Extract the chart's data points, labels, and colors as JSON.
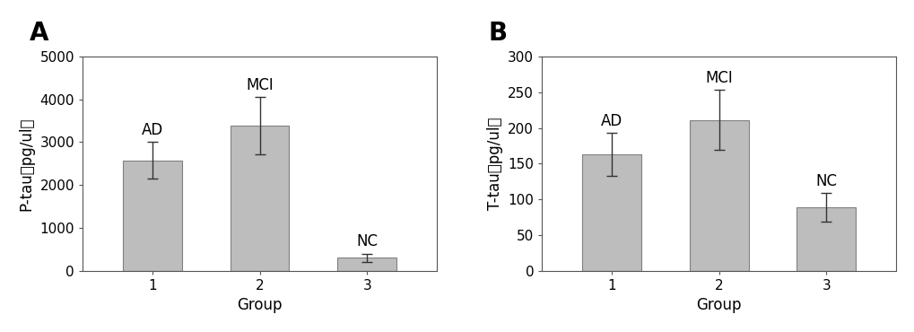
{
  "chart_A": {
    "categories": [
      1,
      2,
      3
    ],
    "values": [
      2580,
      3380,
      300
    ],
    "errors": [
      430,
      670,
      100
    ],
    "bar_labels": [
      "AD",
      "MCI",
      "NC"
    ],
    "ylabel": "P-tau（pg/ul）",
    "xlabel": "Group",
    "ylim": [
      0,
      5000
    ],
    "yticks": [
      0,
      1000,
      2000,
      3000,
      4000,
      5000
    ]
  },
  "chart_B": {
    "categories": [
      1,
      2,
      3
    ],
    "values": [
      163,
      211,
      89
    ],
    "errors": [
      30,
      42,
      20
    ],
    "bar_labels": [
      "AD",
      "MCI",
      "NC"
    ],
    "ylabel": "T-tau（pg/ul）",
    "xlabel": "Group",
    "ylim": [
      0,
      300
    ],
    "yticks": [
      0,
      50,
      100,
      150,
      200,
      250,
      300
    ]
  },
  "panel_labels": [
    "A",
    "B"
  ],
  "bar_color": "#bdbdbd",
  "bar_edge_color": "#808080",
  "error_color": "#333333",
  "tick_fontsize": 11,
  "axis_label_fontsize": 12,
  "panel_label_fontsize": 20,
  "bar_label_fontsize": 12,
  "bar_width": 0.55,
  "background_color": "#ffffff"
}
